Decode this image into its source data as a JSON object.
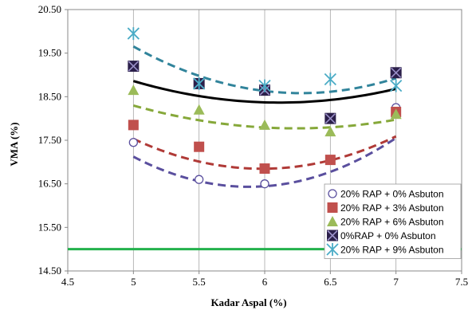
{
  "chart_data": {
    "type": "scatter",
    "title": "",
    "xlabel": "Kadar Aspal (%)",
    "ylabel": "VMA (%)",
    "xlim": [
      4.5,
      7.5
    ],
    "ylim": [
      14.5,
      20.5
    ],
    "x_ticks": [
      "4.5",
      "5",
      "5.5",
      "6",
      "6.5",
      "7",
      "7.5"
    ],
    "y_ticks": [
      "14.50",
      "15.50",
      "16.50",
      "17.50",
      "18.50",
      "19.50",
      "20.50"
    ],
    "grid": "vertical",
    "legend_position": "bottom-right",
    "series": [
      {
        "name": "20% RAP + 0% Asbuton",
        "marker": "open-circle",
        "color": "#5a4f9e",
        "curve_color": "#5a4f9e",
        "x": [
          5,
          5.5,
          6,
          6.5,
          7
        ],
        "y": [
          17.45,
          16.6,
          16.5,
          17.05,
          18.25
        ],
        "trend": [
          0.8929,
          -10.5,
          47.3
        ]
      },
      {
        "name": "20% RAP + 3% Asbuton",
        "marker": "square",
        "color": "#c0504d",
        "curve_color": "#b03a37",
        "x": [
          5,
          5.5,
          6,
          6.5,
          7
        ],
        "y": [
          17.85,
          17.35,
          16.85,
          17.05,
          18.15
        ],
        "trend": [
          0.7143,
          -8.543,
          42.39
        ]
      },
      {
        "name": "20% RAP + 6% Asbuton",
        "marker": "triangle",
        "color": "#9bbb59",
        "curve_color": "#86a83a",
        "x": [
          5,
          5.5,
          6,
          6.5,
          7
        ],
        "y": [
          18.65,
          18.2,
          17.85,
          17.7,
          18.1
        ],
        "trend": [
          0.3429,
          -4.277,
          31.11
        ]
      },
      {
        "name": "0%RAP + 0% Asbuton",
        "marker": "x-square",
        "color": "#2b1f4a",
        "curve_color": "#000000",
        "x": [
          5,
          5.5,
          6,
          6.5,
          7
        ],
        "y": [
          19.2,
          18.8,
          18.65,
          18.0,
          19.05
        ],
        "trend": [
          0.4,
          -4.89,
          33.31
        ]
      },
      {
        "name": "20% RAP + 9% Asbuton",
        "marker": "star",
        "color": "#4bacc6",
        "curve_color": "#31849b",
        "x": [
          5,
          5.5,
          6,
          6.5,
          7
        ],
        "y": [
          19.95,
          18.8,
          18.75,
          18.9,
          18.75
        ],
        "trend": [
          0.6571,
          -8.249,
          44.47
        ]
      }
    ],
    "reference_line": {
      "y": 15.0,
      "color": "#22b14c"
    }
  }
}
